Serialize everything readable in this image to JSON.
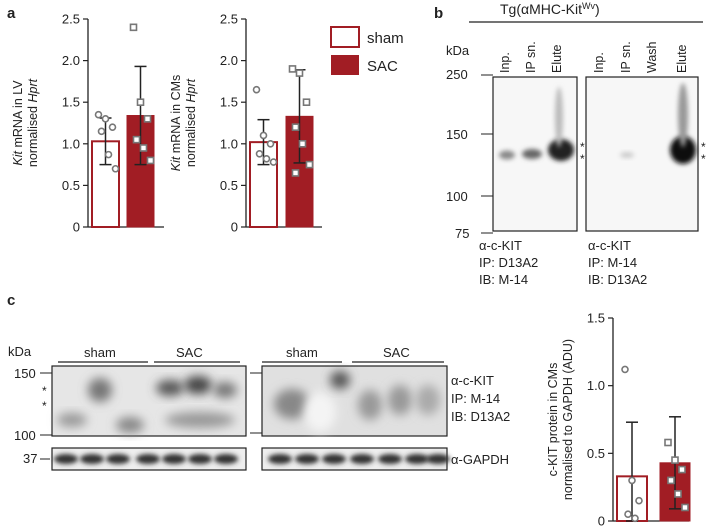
{
  "panels": {
    "a": "a",
    "b": "b",
    "c": "c"
  },
  "colors": {
    "sham_fill": "#ffffff",
    "sham_edge": "#a11d24",
    "sac": "#a11d24"
  },
  "legend": {
    "sham": "sham",
    "sac": "SAC"
  },
  "chart_data": [
    {
      "type": "bar",
      "categories": [
        "sham",
        "SAC"
      ],
      "ylabel_line1": "Kit mRNA in LV",
      "ylabel_line2": "normalised Hprt",
      "ylim": [
        0,
        2.5
      ],
      "yticks": [
        "0",
        "0.5",
        "1.0",
        "1.5",
        "2.0",
        "2.5"
      ],
      "series": [
        {
          "values": [
            1.03,
            1.34
          ],
          "sd": [
            0.28,
            0.59
          ]
        }
      ],
      "points": {
        "sham": [
          1.35,
          1.3,
          1.2,
          1.15,
          0.87,
          0.7
        ],
        "sac": [
          2.4,
          1.5,
          1.3,
          1.05,
          0.95,
          0.8
        ]
      }
    },
    {
      "type": "bar",
      "categories": [
        "sham",
        "SAC"
      ],
      "ylabel_line1": "Kit mRNA in CMs",
      "ylabel_line2": "normalised Hprt",
      "ylim": [
        0,
        2.5
      ],
      "yticks": [
        "0",
        "0.5",
        "1.0",
        "1.5",
        "2.0",
        "2.5"
      ],
      "series": [
        {
          "values": [
            1.02,
            1.33
          ],
          "sd": [
            0.27,
            0.56
          ]
        }
      ],
      "points": {
        "sham": [
          1.65,
          1.1,
          1.0,
          0.88,
          0.82,
          0.78
        ],
        "sac": [
          1.9,
          1.85,
          1.5,
          1.2,
          1.0,
          0.75,
          0.65
        ]
      }
    },
    {
      "type": "bar",
      "categories": [
        "sham",
        "SAC"
      ],
      "ylabel_line1": "c-KIT protein in CMs",
      "ylabel_line2": "normalised to GAPDH (ADU)",
      "ylim": [
        0,
        1.5
      ],
      "yticks": [
        "0",
        "0.5",
        "1.0",
        "1.5"
      ],
      "series": [
        {
          "values": [
            0.33,
            0.43
          ],
          "sd": [
            0.4,
            0.34
          ]
        }
      ],
      "points": {
        "sham": [
          1.12,
          0.3,
          0.15,
          0.05,
          0.02
        ],
        "sac": [
          0.58,
          0.45,
          0.38,
          0.3,
          0.2,
          0.1
        ]
      }
    }
  ],
  "blot_b": {
    "title": "Tg(αMHC-Kit",
    "title_sup": "Wv",
    "title_close": ")",
    "kda": "kDa",
    "markers": [
      "250",
      "150",
      "100",
      "75"
    ],
    "left_lanes": [
      "Inp.",
      "IP sn.",
      "Elute"
    ],
    "right_lanes": [
      "Inp.",
      "IP sn.",
      "Wash",
      "Elute"
    ],
    "star": "*",
    "left_caption": [
      "α-c-KIT",
      "IP: D13A2",
      "IB: M-14"
    ],
    "right_caption": [
      "α-c-KIT",
      "IP: M-14",
      "IB: D13A2"
    ]
  },
  "blot_c": {
    "kda": "kDa",
    "markers": [
      "150",
      "100"
    ],
    "gapdh_marker": "37",
    "groups": [
      "sham",
      "SAC",
      "sham",
      "SAC"
    ],
    "star": "*",
    "labels": [
      "α-c-KIT",
      "IP: M-14",
      "IB: D13A2"
    ],
    "gapdh_label": "α-GAPDH"
  }
}
